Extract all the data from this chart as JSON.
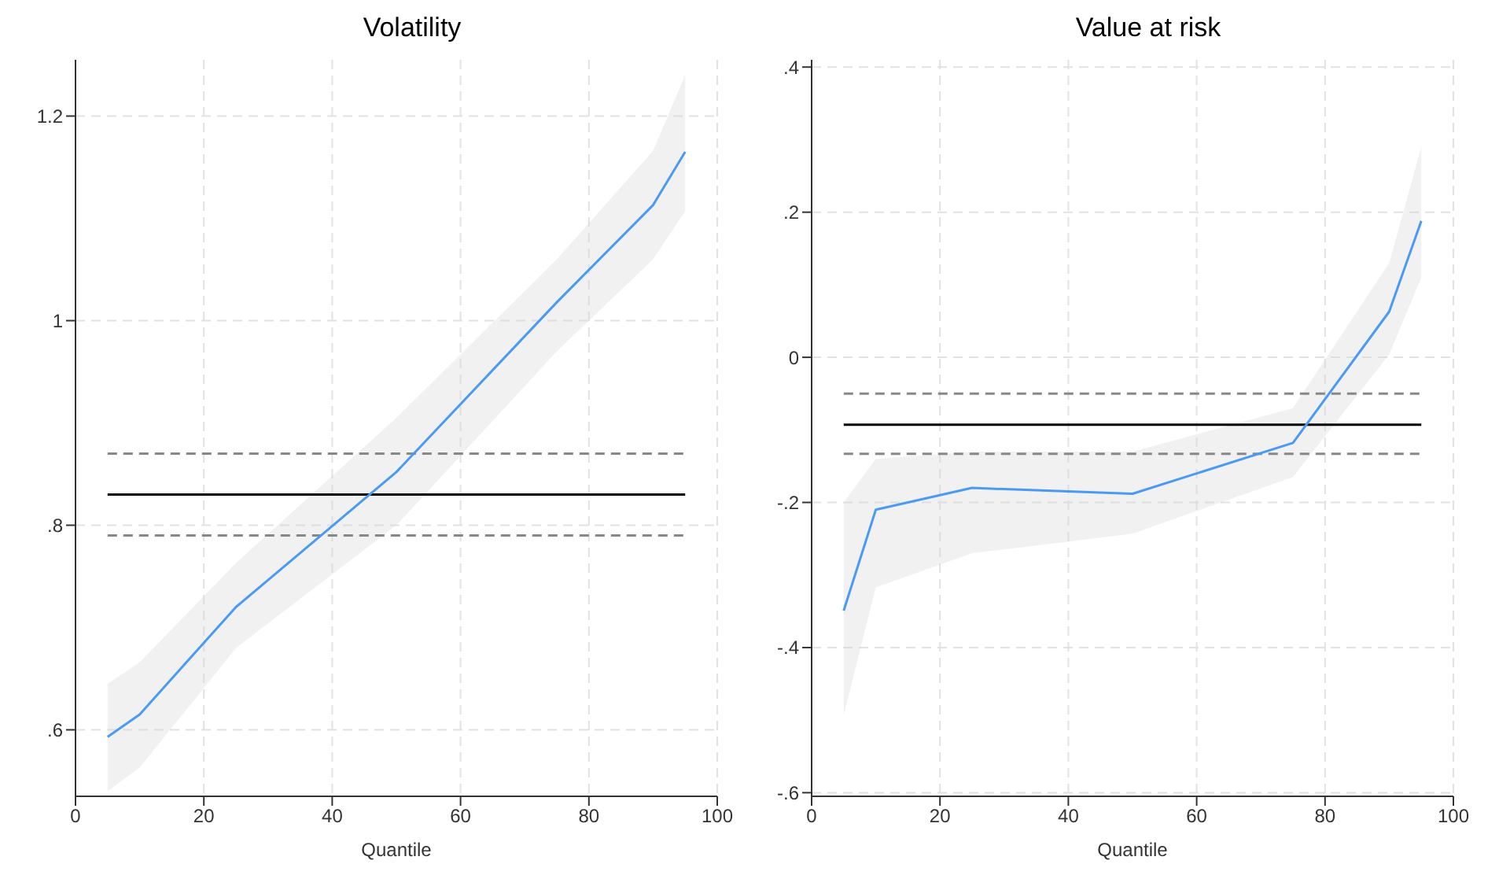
{
  "chart_data": [
    {
      "type": "line",
      "title": "Volatility",
      "xlabel": "Quantile",
      "x": [
        5,
        10,
        25,
        50,
        75,
        90,
        95
      ],
      "series": [
        {
          "color": "#4a9af5",
          "values": [
            0.593,
            0.615,
            0.72,
            0.852,
            1.018,
            1.113,
            1.165
          ],
          "lower": [
            0.54,
            0.563,
            0.68,
            0.8,
            0.97,
            1.06,
            1.107
          ],
          "upper": [
            0.645,
            0.666,
            0.763,
            0.905,
            1.06,
            1.166,
            1.24
          ]
        }
      ],
      "xlim": [
        0,
        100
      ],
      "xticks": [
        0,
        20,
        40,
        60,
        80,
        100
      ],
      "ylim": [
        0.535,
        1.255
      ],
      "yticks": [
        {
          "value": 0.6,
          "label": ".6"
        },
        {
          "value": 0.8,
          "label": ".8"
        },
        1,
        1.2
      ],
      "ref_lines": [
        {
          "axis": "y",
          "value": 0.83,
          "color": "#000000",
          "line_style": "solid"
        },
        {
          "axis": "y",
          "value": 0.87,
          "color": "#888888",
          "line_style": "dashed"
        },
        {
          "axis": "y",
          "value": 0.79,
          "color": "#888888",
          "line_style": "dashed"
        }
      ],
      "grid": true,
      "legend": false,
      "marker": "none",
      "line_style": "solid"
    },
    {
      "type": "line",
      "title": "Value at risk",
      "xlabel": "Quantile",
      "x": [
        5,
        10,
        25,
        50,
        75,
        90,
        95
      ],
      "series": [
        {
          "color": "#4a9af5",
          "values": [
            -0.349,
            -0.21,
            -0.18,
            -0.188,
            -0.118,
            0.063,
            0.188
          ],
          "lower": [
            -0.493,
            -0.317,
            -0.27,
            -0.243,
            -0.165,
            0.004,
            0.11
          ],
          "upper": [
            -0.2,
            -0.14,
            -0.13,
            -0.13,
            -0.07,
            0.13,
            0.29
          ]
        }
      ],
      "xlim": [
        0,
        100
      ],
      "xticks": [
        0,
        20,
        40,
        60,
        80,
        100
      ],
      "ylim": [
        -0.605,
        0.41
      ],
      "yticks": [
        {
          "value": -0.6,
          "label": "-.6"
        },
        {
          "value": -0.4,
          "label": "-.4"
        },
        {
          "value": -0.2,
          "label": "-.2"
        },
        0,
        {
          "value": 0.2,
          "label": ".2"
        },
        {
          "value": 0.4,
          "label": ".4"
        }
      ],
      "ref_lines": [
        {
          "axis": "y",
          "value": -0.093,
          "color": "#000000",
          "line_style": "solid"
        },
        {
          "axis": "y",
          "value": -0.05,
          "color": "#888888",
          "line_style": "dashed"
        },
        {
          "axis": "y",
          "value": -0.133,
          "color": "#888888",
          "line_style": "dashed"
        }
      ],
      "grid": true,
      "legend": false,
      "marker": "none",
      "line_style": "solid"
    }
  ]
}
